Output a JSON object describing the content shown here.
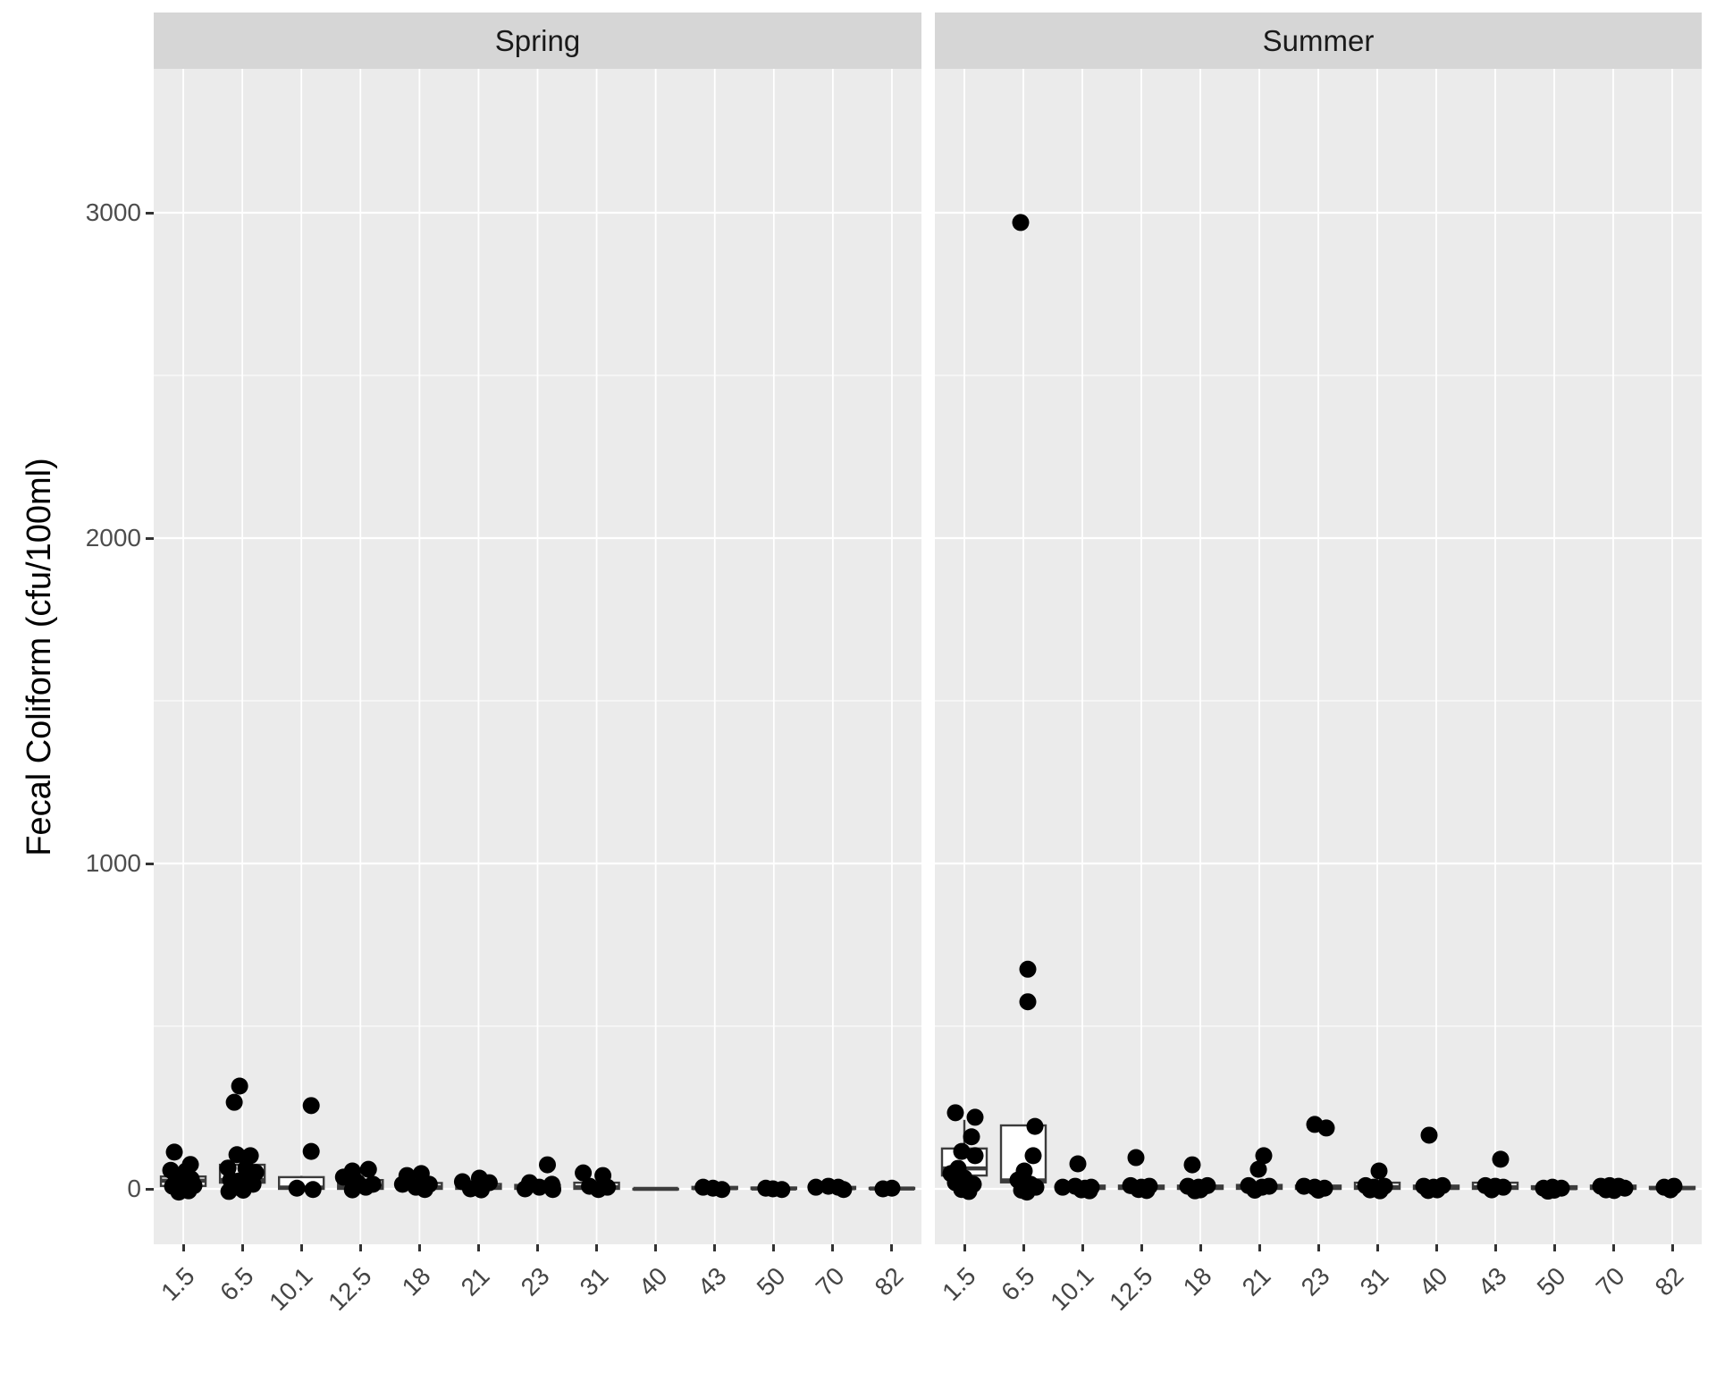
{
  "chart_data": {
    "type": "boxplot",
    "subtype": "faceted_boxplot_with_jittered_points",
    "title": "",
    "xlabel": "",
    "ylabel": "Fecal Coliform (cfu/100ml)",
    "y_ticks": [
      0,
      1000,
      2000,
      3000
    ],
    "y_minor_gridlines": [
      500,
      1500,
      2500
    ],
    "ylim": [
      -170,
      3440
    ],
    "x_tick_angle": 45,
    "grid": "on",
    "legend": "none",
    "note": "Points are horizontally jittered; each point is [x_offset_px, value]. Values near or slightly below 0 reflect jitter of ~0 readings.",
    "categories": [
      "1.5",
      "6.5",
      "10.1",
      "12.5",
      "18",
      "21",
      "23",
      "31",
      "40",
      "43",
      "50",
      "70",
      "82"
    ],
    "facets": [
      {
        "label": "Spring",
        "groups": [
          {
            "category": "1.5",
            "box": {
              "lo": 0,
              "q1": 9,
              "median": 25,
              "q3": 38,
              "hi": 57
            },
            "points": [
              [
                -10,
                113
              ],
              [
                8,
                75
              ],
              [
                -14,
                57
              ],
              [
                3,
                55
              ],
              [
                -8,
                38
              ],
              [
                9,
                30
              ],
              [
                -2,
                20
              ],
              [
                12,
                10
              ],
              [
                -12,
                8
              ],
              [
                0,
                4
              ],
              [
                6,
                -6
              ],
              [
                -5,
                -10
              ]
            ]
          },
          {
            "category": "6.5",
            "box": {
              "lo": 0,
              "q1": 19,
              "median": 27,
              "q3": 74,
              "hi": 105
            },
            "points": [
              [
                -3,
                316
              ],
              [
                -9,
                266
              ],
              [
                -6,
                105
              ],
              [
                9,
                102
              ],
              [
                -16,
                64
              ],
              [
                4,
                63
              ],
              [
                15,
                50
              ],
              [
                7,
                33
              ],
              [
                -13,
                27
              ],
              [
                -4,
                24
              ],
              [
                12,
                14
              ],
              [
                -8,
                5
              ],
              [
                1,
                -4
              ],
              [
                -15,
                -8
              ]
            ]
          },
          {
            "category": "10.1",
            "box": {
              "lo": 0,
              "q1": 0,
              "median": 4,
              "q3": 36,
              "hi": 40
            },
            "points": [
              [
                11,
                256
              ],
              [
                11,
                115
              ],
              [
                -5,
                2
              ],
              [
                13,
                -2
              ]
            ]
          },
          {
            "category": "12.5",
            "box": {
              "lo": 0,
              "q1": 0,
              "median": 8,
              "q3": 27,
              "hi": 60
            },
            "points": [
              [
                9,
                60
              ],
              [
                -9,
                55
              ],
              [
                -19,
                36
              ],
              [
                -3,
                19
              ],
              [
                14,
                14
              ],
              [
                6,
                5
              ],
              [
                -9,
                -3
              ]
            ]
          },
          {
            "category": "18",
            "box": {
              "lo": 0,
              "q1": 0,
              "median": 5,
              "q3": 18,
              "hi": 47
            },
            "points": [
              [
                2,
                47
              ],
              [
                -14,
                41
              ],
              [
                -19,
                14
              ],
              [
                11,
                14
              ],
              [
                -4,
                5
              ],
              [
                6,
                -2
              ]
            ]
          },
          {
            "category": "21",
            "box": {
              "lo": 0,
              "q1": 0,
              "median": 5,
              "q3": 15,
              "hi": 33
            },
            "points": [
              [
                1,
                33
              ],
              [
                -18,
                22
              ],
              [
                12,
                19
              ],
              [
                -9,
                0
              ],
              [
                3,
                -3
              ]
            ]
          },
          {
            "category": "23",
            "box": {
              "lo": 0,
              "q1": 0,
              "median": 4,
              "q3": 12,
              "hi": 19
            },
            "points": [
              [
                11,
                74
              ],
              [
                -9,
                19
              ],
              [
                16,
                14
              ],
              [
                2,
                5
              ],
              [
                -14,
                0
              ],
              [
                17,
                -2
              ]
            ]
          },
          {
            "category": "31",
            "box": {
              "lo": 0,
              "q1": 0,
              "median": 5,
              "q3": 19,
              "hi": 49
            },
            "points": [
              [
                -15,
                49
              ],
              [
                7,
                41
              ],
              [
                -8,
                8
              ],
              [
                12,
                5
              ],
              [
                2,
                -2
              ]
            ]
          },
          {
            "category": "40",
            "box": {
              "lo": 0,
              "q1": 0,
              "median": 0,
              "q3": 0,
              "hi": 0
            },
            "points": []
          },
          {
            "category": "43",
            "box": {
              "lo": 0,
              "q1": 0,
              "median": 2,
              "q3": 6,
              "hi": 8
            },
            "points": [
              [
                -13,
                5
              ],
              [
                -2,
                2
              ],
              [
                8,
                -2
              ]
            ]
          },
          {
            "category": "50",
            "box": {
              "lo": 0,
              "q1": 0,
              "median": 1,
              "q3": 4,
              "hi": 5
            },
            "points": [
              [
                -9,
                2
              ],
              [
                -1,
                0
              ],
              [
                9,
                -2
              ]
            ]
          },
          {
            "category": "70",
            "box": {
              "lo": 0,
              "q1": 0,
              "median": 2,
              "q3": 6,
              "hi": 8
            },
            "points": [
              [
                -19,
                5
              ],
              [
                -5,
                8
              ],
              [
                6,
                5
              ],
              [
                12,
                -2
              ]
            ]
          },
          {
            "category": "82",
            "box": {
              "lo": 0,
              "q1": 0,
              "median": 1,
              "q3": 3,
              "hi": 5
            },
            "points": [
              [
                -10,
                0
              ],
              [
                0,
                2
              ]
            ]
          }
        ]
      },
      {
        "label": "Summer",
        "groups": [
          {
            "category": "1.5",
            "box": {
              "lo": 0,
              "q1": 41,
              "median": 63,
              "q3": 124,
              "hi": 212
            },
            "points": [
              [
                -10,
                234
              ],
              [
                12,
                220
              ],
              [
                8,
                160
              ],
              [
                -3,
                115
              ],
              [
                12,
                102
              ],
              [
                -7,
                63
              ],
              [
                -15,
                47
              ],
              [
                0,
                33
              ],
              [
                -10,
                19
              ],
              [
                10,
                14
              ],
              [
                -3,
                -2
              ],
              [
                5,
                -8
              ]
            ]
          },
          {
            "category": "6.5",
            "box": {
              "lo": 0,
              "q1": 20,
              "median": 26,
              "q3": 195,
              "hi": 198
            },
            "points": [
              [
                -3,
                2970
              ],
              [
                5,
                675
              ],
              [
                5,
                575
              ],
              [
                13,
                192
              ],
              [
                11,
                102
              ],
              [
                1,
                55
              ],
              [
                -6,
                27
              ],
              [
                8,
                14
              ],
              [
                14,
                5
              ],
              [
                -2,
                -4
              ],
              [
                4,
                -10
              ]
            ]
          },
          {
            "category": "10.1",
            "box": {
              "lo": 0,
              "q1": 0,
              "median": 3,
              "q3": 10,
              "hi": 15
            },
            "points": [
              [
                -5,
                77
              ],
              [
                -22,
                5
              ],
              [
                -8,
                8
              ],
              [
                3,
                2
              ],
              [
                10,
                5
              ],
              [
                -1,
                -3
              ],
              [
                8,
                -6
              ]
            ]
          },
          {
            "category": "12.5",
            "box": {
              "lo": 0,
              "q1": 0,
              "median": 3,
              "q3": 10,
              "hi": 15
            },
            "points": [
              [
                -6,
                96
              ],
              [
                -12,
                10
              ],
              [
                0,
                5
              ],
              [
                9,
                8
              ],
              [
                -3,
                -2
              ],
              [
                6,
                -5
              ]
            ]
          },
          {
            "category": "18",
            "box": {
              "lo": 0,
              "q1": 0,
              "median": 3,
              "q3": 10,
              "hi": 15
            },
            "points": [
              [
                -9,
                74
              ],
              [
                -14,
                8
              ],
              [
                -2,
                5
              ],
              [
                8,
                10
              ],
              [
                0,
                -3
              ],
              [
                -6,
                -6
              ]
            ]
          },
          {
            "category": "21",
            "box": {
              "lo": 0,
              "q1": 0,
              "median": 4,
              "q3": 12,
              "hi": 20
            },
            "points": [
              [
                5,
                102
              ],
              [
                -1,
                60
              ],
              [
                -12,
                10
              ],
              [
                3,
                5
              ],
              [
                11,
                8
              ],
              [
                -5,
                -4
              ]
            ]
          },
          {
            "category": "23",
            "box": {
              "lo": 0,
              "q1": 0,
              "median": 3,
              "q3": 10,
              "hi": 19
            },
            "points": [
              [
                -4,
                198
              ],
              [
                9,
                187
              ],
              [
                -16,
                8
              ],
              [
                -4,
                5
              ],
              [
                7,
                2
              ],
              [
                0,
                -4
              ]
            ]
          },
          {
            "category": "31",
            "box": {
              "lo": 0,
              "q1": 0,
              "median": 5,
              "q3": 19,
              "hi": 30
            },
            "points": [
              [
                2,
                55
              ],
              [
                -13,
                10
              ],
              [
                -4,
                5
              ],
              [
                8,
                8
              ],
              [
                -8,
                -3
              ],
              [
                3,
                -6
              ]
            ]
          },
          {
            "category": "40",
            "box": {
              "lo": 0,
              "q1": 0,
              "median": 3,
              "q3": 10,
              "hi": 25
            },
            "points": [
              [
                -8,
                165
              ],
              [
                -14,
                8
              ],
              [
                -3,
                5
              ],
              [
                7,
                10
              ],
              [
                1,
                -3
              ],
              [
                -9,
                -5
              ]
            ]
          },
          {
            "category": "43",
            "box": {
              "lo": 0,
              "q1": 0,
              "median": 5,
              "q3": 19,
              "hi": 30
            },
            "points": [
              [
                6,
                91
              ],
              [
                -11,
                10
              ],
              [
                0,
                8
              ],
              [
                9,
                5
              ],
              [
                -4,
                -3
              ]
            ]
          },
          {
            "category": "50",
            "box": {
              "lo": 0,
              "q1": 0,
              "median": 2,
              "q3": 8,
              "hi": 14
            },
            "points": [
              [
                -12,
                2
              ],
              [
                -2,
                5
              ],
              [
                8,
                2
              ],
              [
                0,
                -4
              ],
              [
                -7,
                -7
              ]
            ]
          },
          {
            "category": "70",
            "box": {
              "lo": 0,
              "q1": 0,
              "median": 3,
              "q3": 10,
              "hi": 25
            },
            "points": [
              [
                -14,
                8
              ],
              [
                -4,
                10
              ],
              [
                6,
                8
              ],
              [
                13,
                2
              ],
              [
                -8,
                -3
              ],
              [
                1,
                -5
              ]
            ]
          },
          {
            "category": "82",
            "box": {
              "lo": 0,
              "q1": 0,
              "median": 2,
              "q3": 6,
              "hi": 8
            },
            "points": [
              [
                -9,
                5
              ],
              [
                2,
                8
              ],
              [
                -2,
                -3
              ]
            ]
          }
        ]
      }
    ],
    "colors": {
      "panel_bg": "#ebebeb",
      "strip_bg": "#d6d6d6",
      "gridline": "#ffffff",
      "point": "#000000",
      "box_stroke": "#3c3c3c",
      "box_fill": "#ffffff",
      "tick_mark": "#333333",
      "tick_label": "#4d4d4d",
      "strip_text": "#1a1a1a",
      "axis_title": "#000000"
    }
  }
}
